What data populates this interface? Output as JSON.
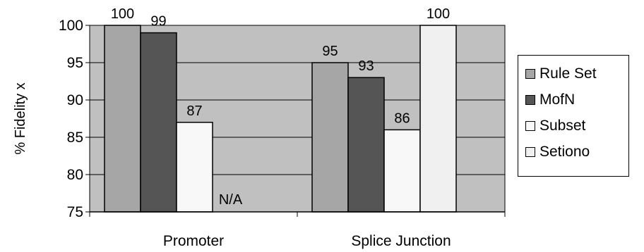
{
  "chart_data": {
    "type": "bar",
    "categories": [
      "Promoter",
      "Splice Junction"
    ],
    "series": [
      {
        "name": "Rule Set",
        "values": [
          100,
          95
        ],
        "color": "#a6a6a6"
      },
      {
        "name": "MofN",
        "values": [
          99,
          93
        ],
        "color": "#555555"
      },
      {
        "name": "Subset",
        "values": [
          87,
          86
        ],
        "color": "#f8f8f8"
      },
      {
        "name": "Setiono",
        "values": [
          null,
          100
        ],
        "color": "#f0f0f0"
      }
    ],
    "data_labels": [
      [
        "100",
        "95"
      ],
      [
        "99",
        "93"
      ],
      [
        "87",
        "86"
      ],
      [
        "N/A",
        "100"
      ]
    ],
    "ylabel": "% Fidelity   x",
    "ylim": [
      75,
      100
    ],
    "yticks": [
      "75",
      "80",
      "85",
      "90",
      "95",
      "100"
    ],
    "grid": true,
    "plot_background": "#c0c0c0",
    "legend_position": "right"
  }
}
